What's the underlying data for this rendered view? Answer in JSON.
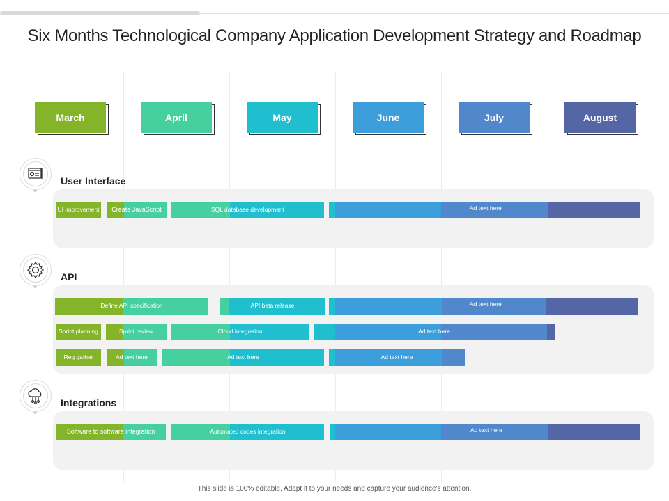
{
  "title": "Six Months Technological Company Application Development Strategy and Roadmap",
  "colors": {
    "march": "#84b42a",
    "april": "#46cf9f",
    "may": "#1fbfd0",
    "june": "#3c9fdb",
    "july": "#5188cc",
    "august": "#5466a6"
  },
  "months": [
    "March",
    "April",
    "May",
    "June",
    "July",
    "August"
  ],
  "sections": {
    "ui": {
      "label": "User Interface",
      "bars": [
        "UI improvement",
        "Create JavaScript",
        "SQL database development",
        "Ad text here"
      ]
    },
    "api": {
      "label": "API",
      "bars": [
        "Define API specification",
        "API beta release",
        "Ad text here",
        "Sprint planning",
        "Sprint review",
        "Cloud integration",
        "Ad text here",
        "Req gather",
        "Ad text here",
        "Ad text here",
        "Ad text here"
      ]
    },
    "integrations": {
      "label": "Integrations",
      "bars": [
        "Software to software integration",
        "Automated codes integration",
        "Ad text here"
      ]
    }
  },
  "footer": "This slide is 100% editable. Adapt it to your needs and capture your audience's attention."
}
